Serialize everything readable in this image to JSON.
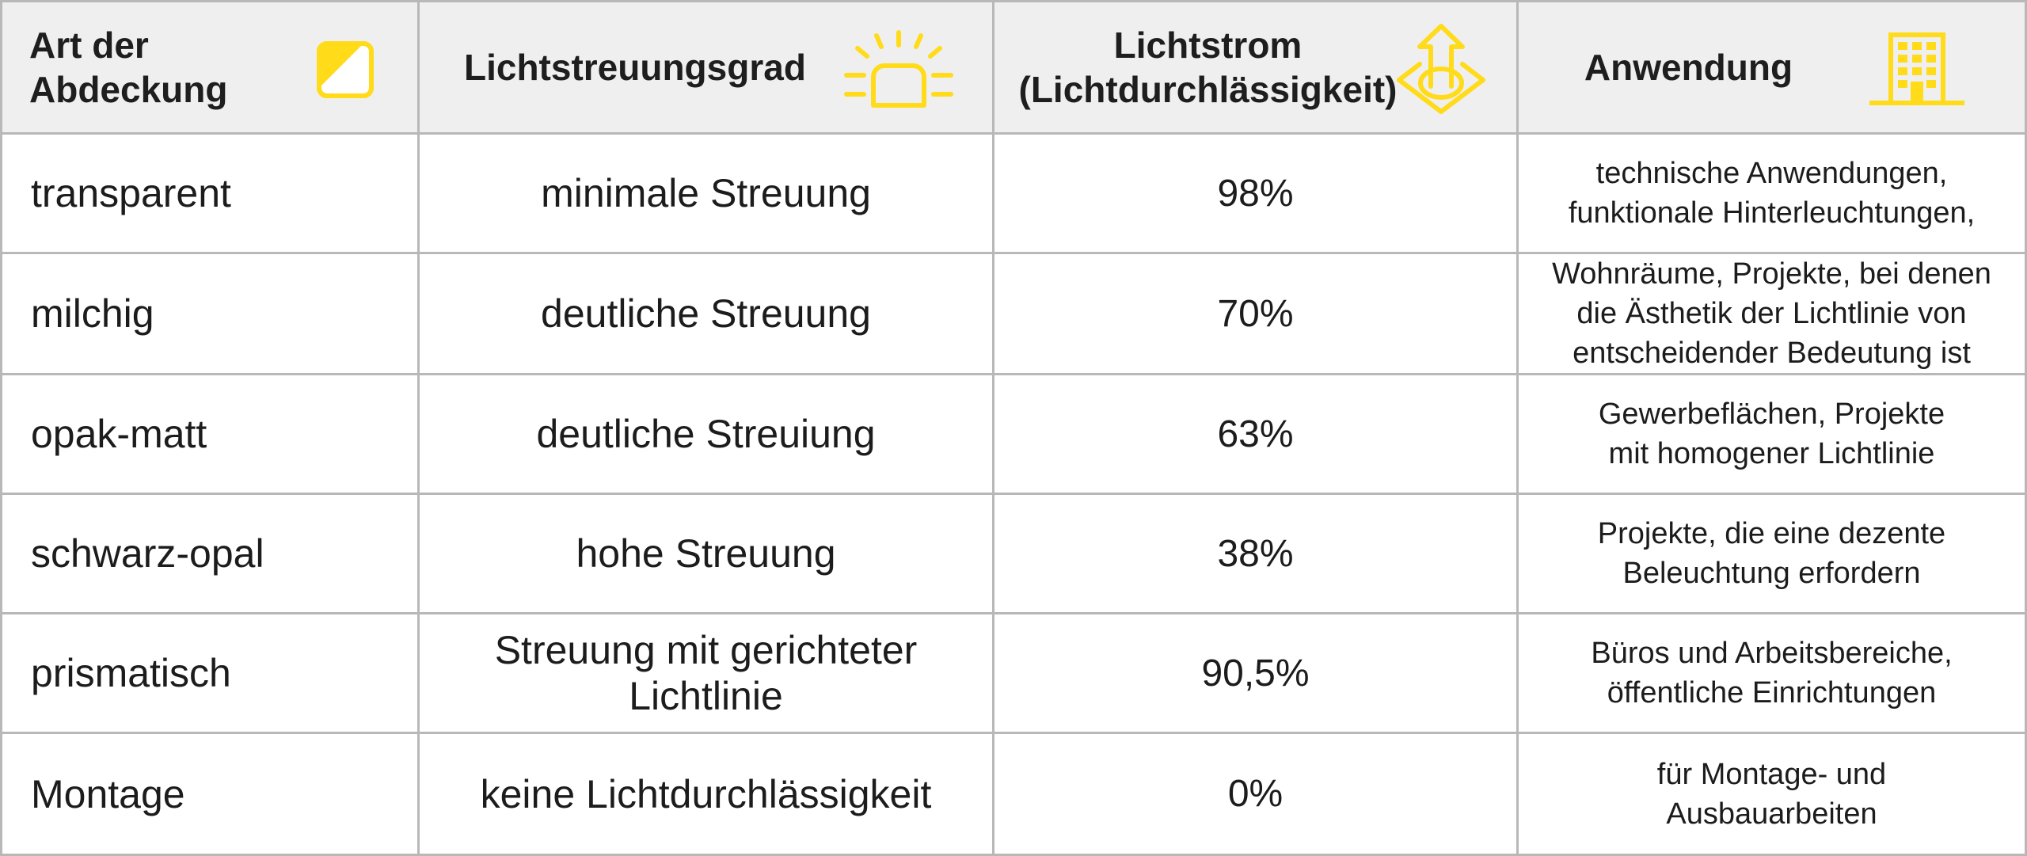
{
  "colors": {
    "accent_yellow": "#FFDB1A",
    "header_bg": "#EFEFEF",
    "grid_line": "#B8B8B8"
  },
  "header": {
    "col1_title": "Art der\nAbdeckung",
    "col1_icon": "half-filled-square-icon",
    "col2_title": "Lichtstreuungsgrad",
    "col2_icon": "lamp-light-icon",
    "col3_title": "Lichtstrom\n(Lichtdurchlässigkeit)",
    "col3_icon": "upward-light-arrow-icon",
    "col4_title": "Anwendung",
    "col4_icon": "office-building-icon"
  },
  "rows": [
    {
      "type": "transparent",
      "scatter": "minimale Streuung",
      "flux": "98%",
      "application": "technische Anwendungen,\nfunktionale Hinterleuchtungen,"
    },
    {
      "type": "milchig",
      "scatter": "deutliche Streuung",
      "flux": "70%",
      "application": "Wohnräume, Projekte, bei denen\ndie Ästhetik der Lichtlinie von\nentscheidender Bedeutung ist"
    },
    {
      "type": "opak-matt",
      "scatter": "deutliche Streuiung",
      "flux": "63%",
      "application": "Gewerbeflächen, Projekte\nmit homogener Lichtlinie"
    },
    {
      "type": "schwarz-opal",
      "scatter": "hohe Streuung",
      "flux": "38%",
      "application": "Projekte, die eine dezente\nBeleuchtung erfordern"
    },
    {
      "type": "prismatisch",
      "scatter": "Streuung mit gerichteter\nLichtlinie",
      "flux": "90,5%",
      "application": "Büros und Arbeitsbereiche,\nöffentliche Einrichtungen"
    },
    {
      "type": "Montage",
      "scatter": "keine Lichtdurchlässigkeit",
      "flux": "0%",
      "application": "für Montage- und\nAusbauarbeiten"
    }
  ]
}
